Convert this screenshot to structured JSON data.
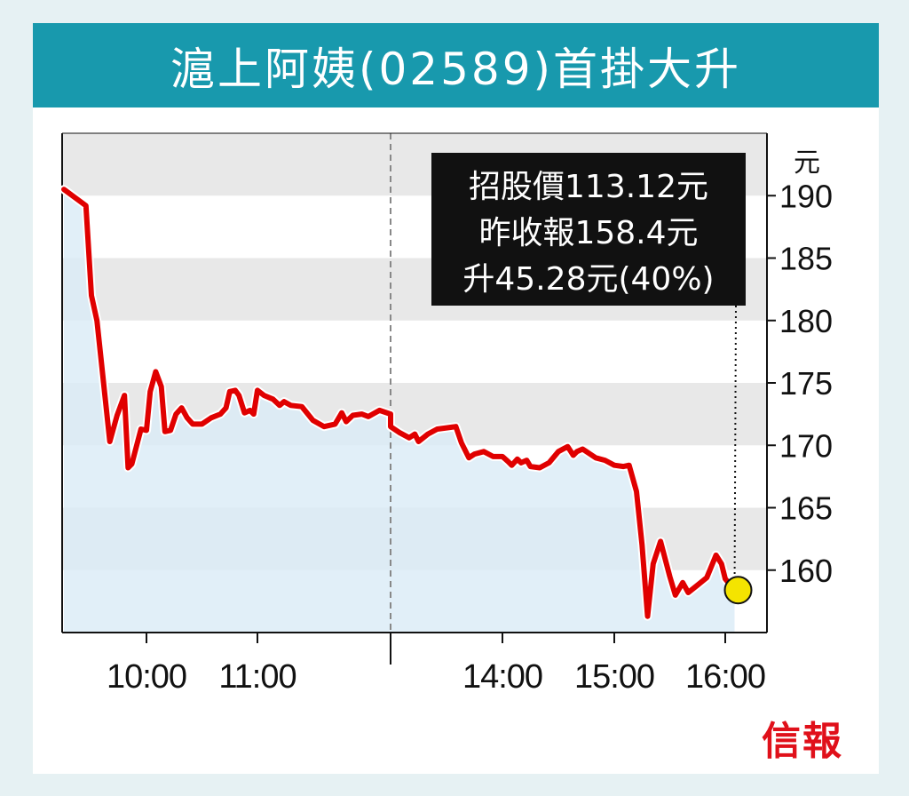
{
  "title": "滬上阿姨(02589)首掛大升",
  "brand": "信報",
  "annotation": {
    "lines": [
      "招股價113.12元",
      "昨收報158.4元",
      "升45.28元(40%)"
    ]
  },
  "colors": {
    "title_bg": "#1899ad",
    "line": "#e00000",
    "area": "#d9ebf6",
    "band": "#e8e8e8",
    "marker": "#f4e400",
    "brand": "#e0101a"
  },
  "chart_data": {
    "type": "line",
    "title": "滬上阿姨(02589)首掛大升",
    "ylabel": "元",
    "ylim": [
      155,
      195
    ],
    "yticks": [
      160,
      165,
      170,
      175,
      180,
      185,
      190
    ],
    "xticks": [
      "10:00",
      "11:00",
      "14:00",
      "15:00",
      "16:00"
    ],
    "grid": "alternating horizontal bands",
    "series": [
      {
        "values_note": "intraday price, time as HH:MM",
        "points": [
          [
            "09:15",
            190.5
          ],
          [
            "09:27",
            189.2
          ],
          [
            "09:30",
            182.0
          ],
          [
            "09:33",
            180.0
          ],
          [
            "09:40",
            170.3
          ],
          [
            "09:44",
            172.4
          ],
          [
            "09:48",
            174.0
          ],
          [
            "09:50",
            168.2
          ],
          [
            "09:52",
            168.5
          ],
          [
            "09:57",
            171.3
          ],
          [
            "10:00",
            171.2
          ],
          [
            "10:02",
            174.3
          ],
          [
            "10:05",
            175.9
          ],
          [
            "10:08",
            174.7
          ],
          [
            "10:10",
            171.1
          ],
          [
            "10:13",
            171.2
          ],
          [
            "10:16",
            172.5
          ],
          [
            "10:19",
            173.0
          ],
          [
            "10:22",
            172.2
          ],
          [
            "10:25",
            171.7
          ],
          [
            "10:30",
            171.7
          ],
          [
            "10:35",
            172.2
          ],
          [
            "10:40",
            172.5
          ],
          [
            "10:43",
            173.0
          ],
          [
            "10:45",
            174.3
          ],
          [
            "10:48",
            174.4
          ],
          [
            "10:50",
            174.0
          ],
          [
            "10:53",
            172.6
          ],
          [
            "10:56",
            172.8
          ],
          [
            "10:58",
            172.5
          ],
          [
            "11:00",
            174.4
          ],
          [
            "11:03",
            174.0
          ],
          [
            "11:07",
            173.7
          ],
          [
            "11:10",
            173.2
          ],
          [
            "11:12",
            173.5
          ],
          [
            "11:15",
            173.2
          ],
          [
            "11:20",
            173.1
          ],
          [
            "11:25",
            172.0
          ],
          [
            "11:30",
            171.5
          ],
          [
            "11:35",
            171.7
          ],
          [
            "11:38",
            172.6
          ],
          [
            "11:40",
            171.9
          ],
          [
            "11:43",
            172.4
          ],
          [
            "11:47",
            172.5
          ],
          [
            "11:50",
            172.3
          ],
          [
            "11:55",
            172.8
          ],
          [
            "12:00",
            172.5
          ],
          [
            "13:00",
            171.5
          ],
          [
            "13:05",
            171.0
          ],
          [
            "13:10",
            170.6
          ],
          [
            "13:13",
            170.9
          ],
          [
            "13:15",
            170.3
          ],
          [
            "13:20",
            170.9
          ],
          [
            "13:25",
            171.3
          ],
          [
            "13:30",
            171.4
          ],
          [
            "13:35",
            171.5
          ],
          [
            "13:38",
            170.2
          ],
          [
            "13:42",
            169.0
          ],
          [
            "13:45",
            169.3
          ],
          [
            "13:50",
            169.5
          ],
          [
            "13:55",
            169.1
          ],
          [
            "14:00",
            169.1
          ],
          [
            "14:03",
            168.7
          ],
          [
            "14:05",
            168.4
          ],
          [
            "14:08",
            168.9
          ],
          [
            "14:10",
            168.6
          ],
          [
            "14:13",
            168.8
          ],
          [
            "14:15",
            168.3
          ],
          [
            "14:20",
            168.2
          ],
          [
            "14:25",
            168.6
          ],
          [
            "14:30",
            169.5
          ],
          [
            "14:35",
            169.9
          ],
          [
            "14:38",
            169.2
          ],
          [
            "14:40",
            169.5
          ],
          [
            "14:43",
            169.7
          ],
          [
            "14:45",
            169.5
          ],
          [
            "14:50",
            169.0
          ],
          [
            "14:55",
            168.8
          ],
          [
            "15:00",
            168.4
          ],
          [
            "15:05",
            168.3
          ],
          [
            "15:08",
            168.4
          ],
          [
            "15:12",
            166.3
          ],
          [
            "15:15",
            162.0
          ],
          [
            "15:18",
            156.3
          ],
          [
            "15:21",
            160.5
          ],
          [
            "15:25",
            162.3
          ],
          [
            "15:30",
            159.5
          ],
          [
            "15:33",
            158.0
          ],
          [
            "15:37",
            159.0
          ],
          [
            "15:40",
            158.2
          ],
          [
            "15:45",
            158.8
          ],
          [
            "15:50",
            159.4
          ],
          [
            "15:55",
            161.2
          ],
          [
            "15:58",
            160.5
          ],
          [
            "16:00",
            159.3
          ],
          [
            "16:05",
            158.4
          ]
        ]
      }
    ],
    "marker": {
      "time": "16:05",
      "value": 158.4
    }
  }
}
